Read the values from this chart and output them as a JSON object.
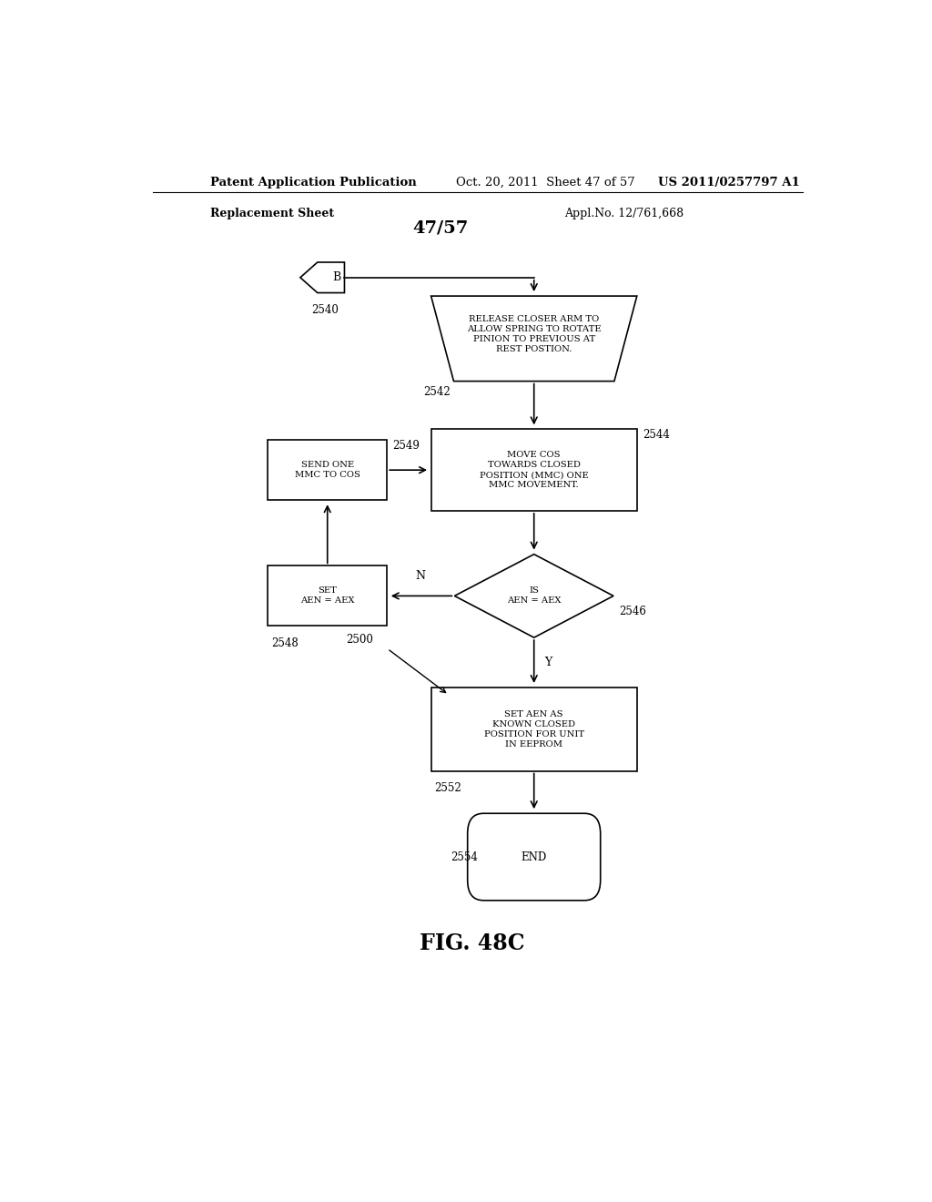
{
  "background_color": "#ffffff",
  "header_line1": "Patent Application Publication",
  "header_line2": "Oct. 20, 2011  Sheet 47 of 57",
  "header_line3": "US 2011/0257797 A1",
  "replacement_sheet": "Replacement Sheet",
  "appl_no": "Appl.No. 12/761,668",
  "page_label": "47/57",
  "fig_label": "FIG. 48C",
  "B_label": "B",
  "ref_2540": "2540",
  "ref_2542": "2542",
  "ref_2544": "2544",
  "ref_2549": "2549",
  "ref_2546": "2546",
  "ref_2548": "2548",
  "ref_2552": "2552",
  "ref_2554": "2554",
  "ref_2500": "2500",
  "text_trap": "RELEASE CLOSER ARM TO\nALLOW SPRING TO ROTATE\nPINION TO PREVIOUS AT\nREST POSTION.",
  "text_2544": "MOVE COS\nTOWARDS CLOSED\nPOSITION (MMC) ONE\nMMC MOVEMENT.",
  "text_2549": "SEND ONE\nMMC TO COS",
  "text_diam": "IS\nAEN = AEX",
  "text_2548": "SET\nAEN = AEX",
  "text_2552": "SET AEN AS\nKNOWN CLOSED\nPOSITION FOR UNIT\nIN EEPROM",
  "text_end": "END",
  "label_N": "N",
  "label_Y": "Y"
}
